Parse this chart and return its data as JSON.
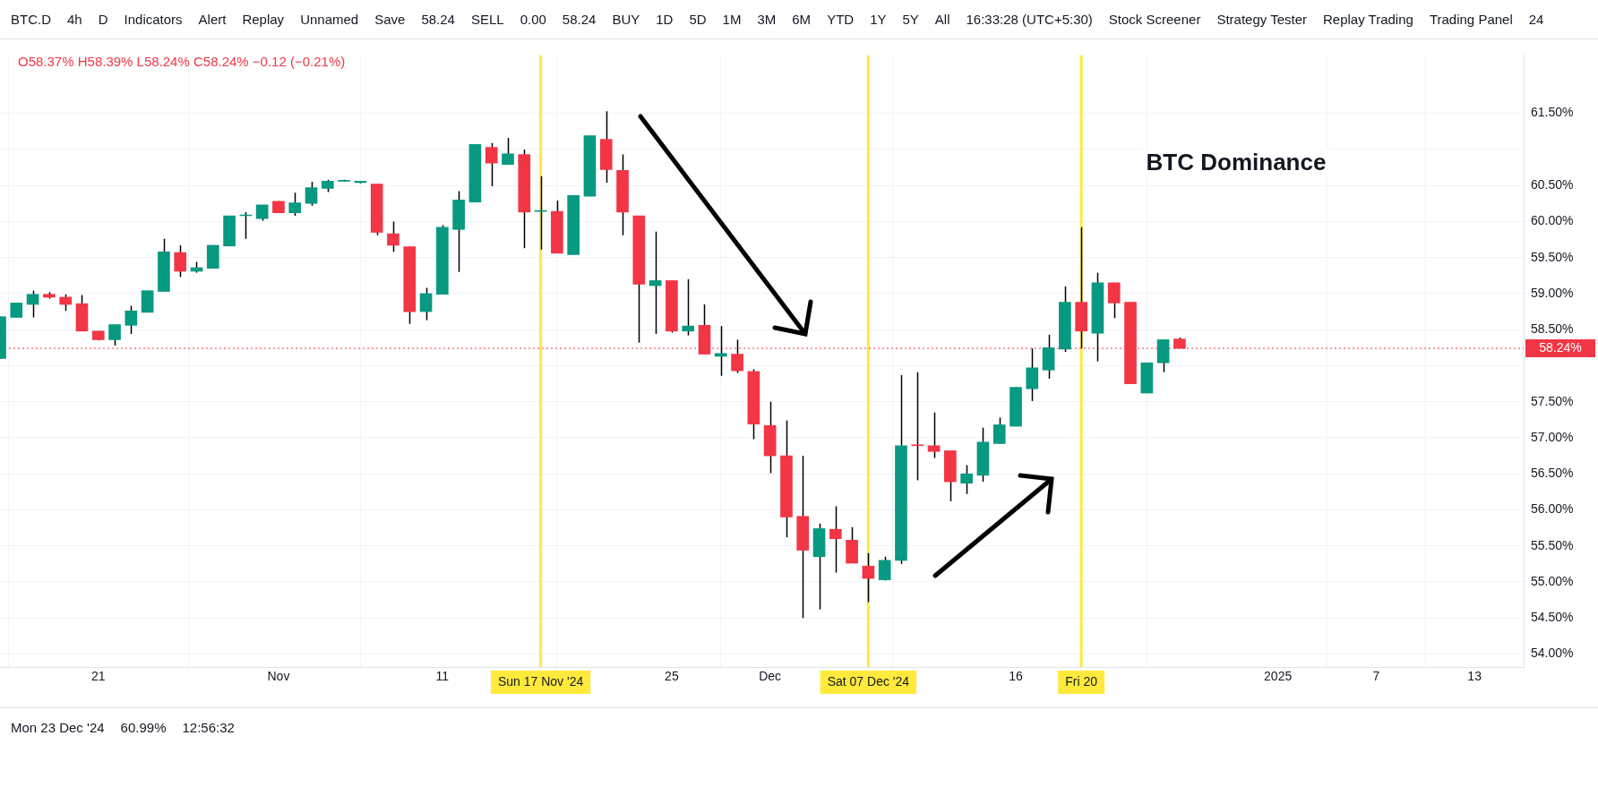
{
  "chart_data": {
    "type": "candlestick",
    "title": "BTC Dominance",
    "subtitle": "O58.37% H58.39% L58.24% C58.24% −0.12 (−0.21%)",
    "x": [
      "2024-10-15",
      "2024-10-16",
      "2024-10-17",
      "2024-10-18",
      "2024-10-19",
      "2024-10-20",
      "2024-10-21",
      "2024-10-22",
      "2024-10-23",
      "2024-10-24",
      "2024-10-25",
      "2024-10-26",
      "2024-10-27",
      "2024-10-28",
      "2024-10-29",
      "2024-10-30",
      "2024-10-31",
      "2024-11-01",
      "2024-11-02",
      "2024-11-03",
      "2024-11-04",
      "2024-11-05",
      "2024-11-06",
      "2024-11-07",
      "2024-11-08",
      "2024-11-09",
      "2024-11-10",
      "2024-11-11",
      "2024-11-12",
      "2024-11-13",
      "2024-11-14",
      "2024-11-15",
      "2024-11-16",
      "2024-11-17",
      "2024-11-18",
      "2024-11-19",
      "2024-11-20",
      "2024-11-21",
      "2024-11-22",
      "2024-11-23",
      "2024-11-24",
      "2024-11-25",
      "2024-11-26",
      "2024-11-27",
      "2024-11-28",
      "2024-11-29",
      "2024-11-30",
      "2024-12-01",
      "2024-12-02",
      "2024-12-03",
      "2024-12-04",
      "2024-12-05",
      "2024-12-06",
      "2024-12-07",
      "2024-12-08",
      "2024-12-09",
      "2024-12-10",
      "2024-12-11",
      "2024-12-12",
      "2024-12-13",
      "2024-12-14",
      "2024-12-15",
      "2024-12-16",
      "2024-12-17",
      "2024-12-18",
      "2024-12-19",
      "2024-12-20",
      "2024-12-21",
      "2024-12-22",
      "2024-12-23",
      "2024-12-24",
      "2024-12-25",
      "2024-12-26"
    ],
    "ohlc": [
      [
        58.1,
        58.68,
        58.1,
        58.68
      ],
      [
        58.67,
        58.87,
        58.67,
        58.87
      ],
      [
        58.85,
        59.04,
        58.67,
        58.99
      ],
      [
        58.99,
        59.02,
        58.93,
        58.95
      ],
      [
        58.95,
        58.99,
        58.76,
        58.85
      ],
      [
        58.86,
        58.98,
        58.48,
        58.48
      ],
      [
        58.48,
        58.48,
        58.35,
        58.36
      ],
      [
        58.36,
        58.57,
        58.28,
        58.57
      ],
      [
        58.56,
        58.83,
        58.44,
        58.76
      ],
      [
        58.74,
        59.04,
        58.74,
        59.04
      ],
      [
        59.03,
        59.76,
        59.03,
        59.58
      ],
      [
        59.57,
        59.67,
        59.23,
        59.31
      ],
      [
        59.31,
        59.44,
        59.29,
        59.36
      ],
      [
        59.35,
        59.67,
        59.35,
        59.67
      ],
      [
        59.66,
        60.08,
        59.66,
        60.08
      ],
      [
        60.08,
        60.13,
        59.76,
        60.08
      ],
      [
        60.04,
        60.23,
        60.01,
        60.23
      ],
      [
        60.28,
        60.28,
        60.12,
        60.12
      ],
      [
        60.12,
        60.4,
        60.08,
        60.26
      ],
      [
        60.25,
        60.55,
        60.22,
        60.47
      ],
      [
        60.46,
        60.58,
        60.41,
        60.56
      ],
      [
        60.56,
        60.58,
        60.55,
        60.57
      ],
      [
        60.54,
        60.56,
        60.53,
        60.56
      ],
      [
        60.52,
        60.52,
        59.81,
        59.85
      ],
      [
        59.83,
        60.0,
        59.58,
        59.67
      ],
      [
        59.65,
        59.65,
        58.58,
        58.75
      ],
      [
        58.75,
        59.08,
        58.63,
        59.0
      ],
      [
        58.99,
        59.95,
        58.99,
        59.92
      ],
      [
        59.89,
        60.42,
        59.3,
        60.3
      ],
      [
        60.27,
        61.07,
        60.27,
        61.07
      ],
      [
        61.03,
        61.09,
        60.49,
        60.81
      ],
      [
        60.79,
        61.16,
        60.79,
        60.94
      ],
      [
        60.93,
        61.0,
        59.63,
        60.13
      ],
      [
        60.14,
        60.63,
        59.61,
        60.15
      ],
      [
        60.14,
        60.29,
        59.56,
        59.56
      ],
      [
        59.54,
        60.36,
        59.54,
        60.36
      ],
      [
        60.35,
        61.19,
        60.35,
        61.19
      ],
      [
        61.14,
        61.53,
        60.54,
        60.72
      ],
      [
        60.71,
        60.93,
        59.81,
        60.13
      ],
      [
        60.08,
        60.08,
        58.32,
        59.13
      ],
      [
        59.11,
        59.86,
        58.44,
        59.18
      ],
      [
        59.18,
        59.18,
        58.46,
        58.48
      ],
      [
        58.48,
        59.2,
        58.42,
        58.55
      ],
      [
        58.56,
        58.85,
        58.16,
        58.16
      ],
      [
        58.13,
        58.55,
        57.86,
        58.17
      ],
      [
        58.16,
        58.36,
        57.9,
        57.93
      ],
      [
        57.92,
        57.95,
        56.98,
        57.19
      ],
      [
        57.17,
        57.5,
        56.51,
        56.75
      ],
      [
        56.75,
        57.24,
        55.62,
        55.9
      ],
      [
        55.91,
        56.75,
        54.5,
        55.44
      ],
      [
        55.35,
        55.81,
        54.62,
        55.74
      ],
      [
        55.73,
        56.05,
        55.13,
        55.6
      ],
      [
        55.58,
        55.76,
        55.26,
        55.26
      ],
      [
        55.22,
        55.4,
        54.72,
        55.05
      ],
      [
        55.03,
        55.35,
        55.02,
        55.3
      ],
      [
        55.3,
        57.87,
        55.25,
        56.89
      ],
      [
        56.9,
        57.91,
        56.41,
        56.89
      ],
      [
        56.89,
        57.35,
        56.72,
        56.81
      ],
      [
        56.82,
        56.82,
        56.12,
        56.39
      ],
      [
        56.37,
        56.62,
        56.22,
        56.5
      ],
      [
        56.48,
        57.14,
        56.39,
        56.94
      ],
      [
        56.92,
        57.28,
        56.92,
        57.18
      ],
      [
        57.16,
        57.7,
        57.16,
        57.7
      ],
      [
        57.68,
        58.24,
        57.51,
        57.97
      ],
      [
        57.94,
        58.43,
        57.82,
        58.25
      ],
      [
        58.23,
        59.1,
        58.19,
        58.88
      ],
      [
        58.88,
        59.92,
        58.24,
        58.48
      ],
      [
        58.45,
        59.29,
        58.06,
        59.15
      ],
      [
        59.15,
        59.15,
        58.66,
        58.87
      ],
      [
        58.88,
        58.88,
        57.75,
        57.75
      ],
      [
        57.62,
        58.04,
        57.62,
        58.04
      ],
      [
        58.04,
        58.36,
        57.91,
        58.36
      ],
      [
        58.37,
        58.39,
        58.24,
        58.24
      ]
    ],
    "colors": [
      "#089981",
      "#089981",
      "#089981",
      "#f23645",
      "#f23645",
      "#f23645",
      "#f23645",
      "#089981",
      "#089981",
      "#089981",
      "#089981",
      "#f23645",
      "#089981",
      "#089981",
      "#089981",
      "#089981",
      "#089981",
      "#f23645",
      "#089981",
      "#089981",
      "#089981",
      "#089981",
      "#089981",
      "#f23645",
      "#f23645",
      "#f23645",
      "#089981",
      "#089981",
      "#089981",
      "#089981",
      "#f23645",
      "#089981",
      "#f23645",
      "#089981",
      "#f23645",
      "#089981",
      "#089981",
      "#f23645",
      "#f23645",
      "#f23645",
      "#089981",
      "#f23645",
      "#089981",
      "#f23645",
      "#089981",
      "#f23645",
      "#f23645",
      "#f23645",
      "#f23645",
      "#f23645",
      "#089981",
      "#f23645",
      "#f23645",
      "#f23645",
      "#089981",
      "#089981",
      "#f23645",
      "#f23645",
      "#f23645",
      "#089981",
      "#089981",
      "#089981",
      "#089981",
      "#089981",
      "#089981",
      "#089981",
      "#f23645",
      "#089981",
      "#f23645",
      "#f23645",
      "#089981",
      "#089981",
      "#f23645"
    ],
    "xlim": [
      "2024-10-15",
      "2025-01-16"
    ],
    "xticks": [
      {
        "value": "2024-10-21",
        "label": "21"
      },
      {
        "value": "2024-11-01",
        "label": "Nov"
      },
      {
        "value": "2024-11-11",
        "label": "11"
      },
      {
        "value": "2024-11-25",
        "label": "25"
      },
      {
        "value": "2024-12-01",
        "label": "Dec"
      },
      {
        "value": "2024-12-16",
        "label": "16"
      },
      {
        "value": "2025-01-01",
        "label": "2025"
      },
      {
        "value": "2025-01-07",
        "label": "7"
      },
      {
        "value": "2025-01-13",
        "label": "13"
      }
    ],
    "ylim": [
      53.82,
      62.31
    ],
    "yticks": [
      {
        "value": 54,
        "label": "54.00%"
      },
      {
        "value": 54.5,
        "label": "54.50%"
      },
      {
        "value": 55,
        "label": "55.00%"
      },
      {
        "value": 55.5,
        "label": "55.50%"
      },
      {
        "value": 56,
        "label": "56.00%"
      },
      {
        "value": 56.5,
        "label": "56.50%"
      },
      {
        "value": 57,
        "label": "57.00%"
      },
      {
        "value": 57.5,
        "label": "57.50%"
      },
      {
        "value": 58,
        "label": null
      },
      {
        "value": 58.5,
        "label": "58.50%"
      },
      {
        "value": 59,
        "label": "59.00%"
      },
      {
        "value": 59.5,
        "label": "59.50%"
      },
      {
        "value": 60,
        "label": "60.00%"
      },
      {
        "value": 60.5,
        "label": "60.50%"
      },
      {
        "value": 61,
        "label": null
      },
      {
        "value": 61.5,
        "label": "61.50%"
      }
    ],
    "grid": true,
    "ref_lines": [
      {
        "axis": "x",
        "value": "2024-11-17",
        "label": "Sun 17 Nov '24",
        "color": "#ffe93b"
      },
      {
        "axis": "x",
        "value": "2024-12-07",
        "label": "Sat 07 Dec '24",
        "color": "#ffe93b"
      },
      {
        "axis": "x",
        "value": "2024-12-20",
        "label": "Fri 20",
        "color": "#ffe93b"
      },
      {
        "axis": "y",
        "value": 58.24,
        "label": "58.24%",
        "color": "#f23645",
        "line_style": "dotted"
      }
    ],
    "annotations": [
      "BTC.D",
      "4h",
      "D",
      "Indicators",
      "Alert",
      "Replay",
      "Unnamed",
      "Save",
      "58.24",
      "SELL",
      "0.00",
      "58.24",
      "BUY",
      "1D",
      "5D",
      "1M",
      "3M",
      "6M",
      "YTD",
      "1Y",
      "5Y",
      "All",
      "16:33:28 (UTC+5:30)",
      "Stock Screener",
      "Strategy Tester",
      "Replay Trading",
      "Trading Panel",
      "24",
      "Mon 23 Dec '24",
      "60.99%",
      "12:56:32"
    ]
  }
}
